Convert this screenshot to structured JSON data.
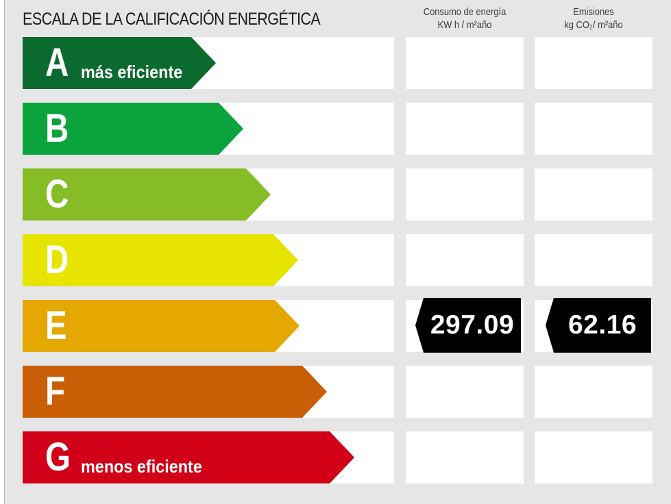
{
  "header": {
    "title": "ESCALA DE LA CALIFICACIÓN ENERGÉTICA",
    "energy_col_line1": "Consumo de energía",
    "energy_col_line2": "KW h / m²año",
    "emissions_col_line1": "Emisiones",
    "emissions_col_line2": "kg CO₂/ m²año"
  },
  "ratings": [
    {
      "letter": "A",
      "sublabel": "más eficiente",
      "color": "#0b6b2e"
    },
    {
      "letter": "B",
      "sublabel": "",
      "color": "#0aa33e"
    },
    {
      "letter": "C",
      "sublabel": "",
      "color": "#86bd26"
    },
    {
      "letter": "D",
      "sublabel": "",
      "color": "#e6e400"
    },
    {
      "letter": "E",
      "sublabel": "",
      "color": "#e5a800"
    },
    {
      "letter": "F",
      "sublabel": "",
      "color": "#c95e06"
    },
    {
      "letter": "G",
      "sublabel": "menos eficiente",
      "color": "#d10018"
    }
  ],
  "current_rating": "E",
  "values": {
    "energy_consumption": "297.09",
    "emissions": "62.16"
  }
}
